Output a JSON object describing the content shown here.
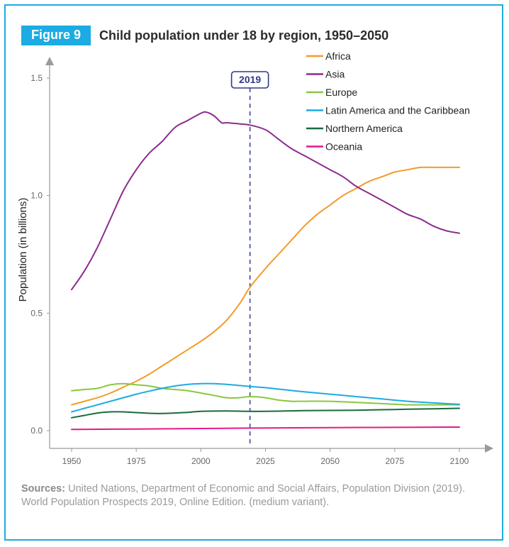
{
  "figure": {
    "tag": "Figure 9",
    "title": "Child population under 18 by region, 1950–2050"
  },
  "sources": {
    "label": "Sources:",
    "text": "United Nations, Department of Economic and Social Affairs, Population Division (2019). World Population Prospects 2019, Online Edition. (medium variant)."
  },
  "chart_data": {
    "type": "line",
    "title": "Child population under 18 by region, 1950–2050",
    "xlabel": "",
    "ylabel": "Population (in billions)",
    "xlim": [
      1950,
      2100
    ],
    "ylim": [
      0.0,
      1.5
    ],
    "xticks": [
      1950,
      1975,
      2000,
      2025,
      2050,
      2075,
      2100
    ],
    "xtick_labels": [
      "1950",
      "1975",
      "2000",
      "2025",
      "2050",
      "2075",
      "2100"
    ],
    "yticks": [
      0.0,
      0.5,
      1.0,
      1.5
    ],
    "ytick_labels": [
      "0.0",
      "0.5",
      "1.0",
      "1.5"
    ],
    "grid": false,
    "legend_position": "top-right",
    "annotation": {
      "label": "2019",
      "x": 2019
    },
    "series": [
      {
        "name": "Africa",
        "color": "#f39c27",
        "x": [
          1950,
          1955,
          1960,
          1965,
          1970,
          1975,
          1980,
          1985,
          1990,
          1995,
          2000,
          2005,
          2010,
          2015,
          2019,
          2025,
          2030,
          2035,
          2040,
          2045,
          2050,
          2055,
          2060,
          2065,
          2070,
          2075,
          2080,
          2085,
          2090,
          2095,
          2100
        ],
        "y": [
          0.11,
          0.125,
          0.14,
          0.16,
          0.185,
          0.21,
          0.24,
          0.275,
          0.31,
          0.345,
          0.38,
          0.42,
          0.47,
          0.54,
          0.61,
          0.69,
          0.75,
          0.81,
          0.87,
          0.92,
          0.96,
          1.0,
          1.03,
          1.06,
          1.08,
          1.1,
          1.11,
          1.12,
          1.12,
          1.12,
          1.12
        ]
      },
      {
        "name": "Asia",
        "color": "#8b2c8f",
        "x": [
          1950,
          1955,
          1960,
          1965,
          1970,
          1975,
          1980,
          1985,
          1990,
          1995,
          2000,
          2002,
          2005,
          2008,
          2010,
          2015,
          2019,
          2025,
          2030,
          2035,
          2040,
          2045,
          2050,
          2055,
          2060,
          2065,
          2070,
          2075,
          2080,
          2085,
          2090,
          2095,
          2100
        ],
        "y": [
          0.6,
          0.68,
          0.78,
          0.9,
          1.02,
          1.11,
          1.18,
          1.23,
          1.29,
          1.32,
          1.35,
          1.355,
          1.34,
          1.31,
          1.31,
          1.305,
          1.3,
          1.28,
          1.24,
          1.2,
          1.17,
          1.14,
          1.11,
          1.08,
          1.04,
          1.01,
          0.98,
          0.95,
          0.92,
          0.9,
          0.87,
          0.85,
          0.84
        ]
      },
      {
        "name": "Europe",
        "color": "#8cc63e",
        "x": [
          1950,
          1955,
          1960,
          1965,
          1970,
          1975,
          1980,
          1985,
          1990,
          1995,
          2000,
          2005,
          2010,
          2015,
          2019,
          2025,
          2030,
          2035,
          2040,
          2050,
          2060,
          2070,
          2080,
          2090,
          2100
        ],
        "y": [
          0.17,
          0.175,
          0.18,
          0.195,
          0.2,
          0.195,
          0.19,
          0.18,
          0.175,
          0.17,
          0.16,
          0.15,
          0.14,
          0.14,
          0.145,
          0.14,
          0.13,
          0.125,
          0.125,
          0.125,
          0.12,
          0.115,
          0.11,
          0.11,
          0.11
        ]
      },
      {
        "name": "Latin America and the Caribbean",
        "color": "#1cabe2",
        "x": [
          1950,
          1955,
          1960,
          1965,
          1970,
          1975,
          1980,
          1985,
          1990,
          1995,
          2000,
          2005,
          2010,
          2015,
          2019,
          2025,
          2030,
          2040,
          2050,
          2060,
          2070,
          2080,
          2090,
          2100
        ],
        "y": [
          0.08,
          0.095,
          0.11,
          0.125,
          0.14,
          0.155,
          0.168,
          0.18,
          0.19,
          0.197,
          0.2,
          0.2,
          0.197,
          0.192,
          0.188,
          0.183,
          0.177,
          0.165,
          0.155,
          0.145,
          0.135,
          0.125,
          0.118,
          0.112
        ]
      },
      {
        "name": "Northern America",
        "color": "#1a6b3c",
        "x": [
          1950,
          1955,
          1960,
          1965,
          1970,
          1975,
          1980,
          1985,
          1990,
          1995,
          2000,
          2010,
          2019,
          2030,
          2040,
          2050,
          2060,
          2070,
          2080,
          2090,
          2100
        ],
        "y": [
          0.055,
          0.065,
          0.075,
          0.08,
          0.08,
          0.077,
          0.074,
          0.073,
          0.075,
          0.078,
          0.082,
          0.084,
          0.082,
          0.083,
          0.085,
          0.086,
          0.087,
          0.089,
          0.091,
          0.093,
          0.095
        ]
      },
      {
        "name": "Oceania",
        "color": "#e5198a",
        "x": [
          1950,
          1975,
          2000,
          2019,
          2050,
          2075,
          2100
        ],
        "y": [
          0.005,
          0.007,
          0.009,
          0.011,
          0.013,
          0.014,
          0.015
        ]
      }
    ]
  }
}
